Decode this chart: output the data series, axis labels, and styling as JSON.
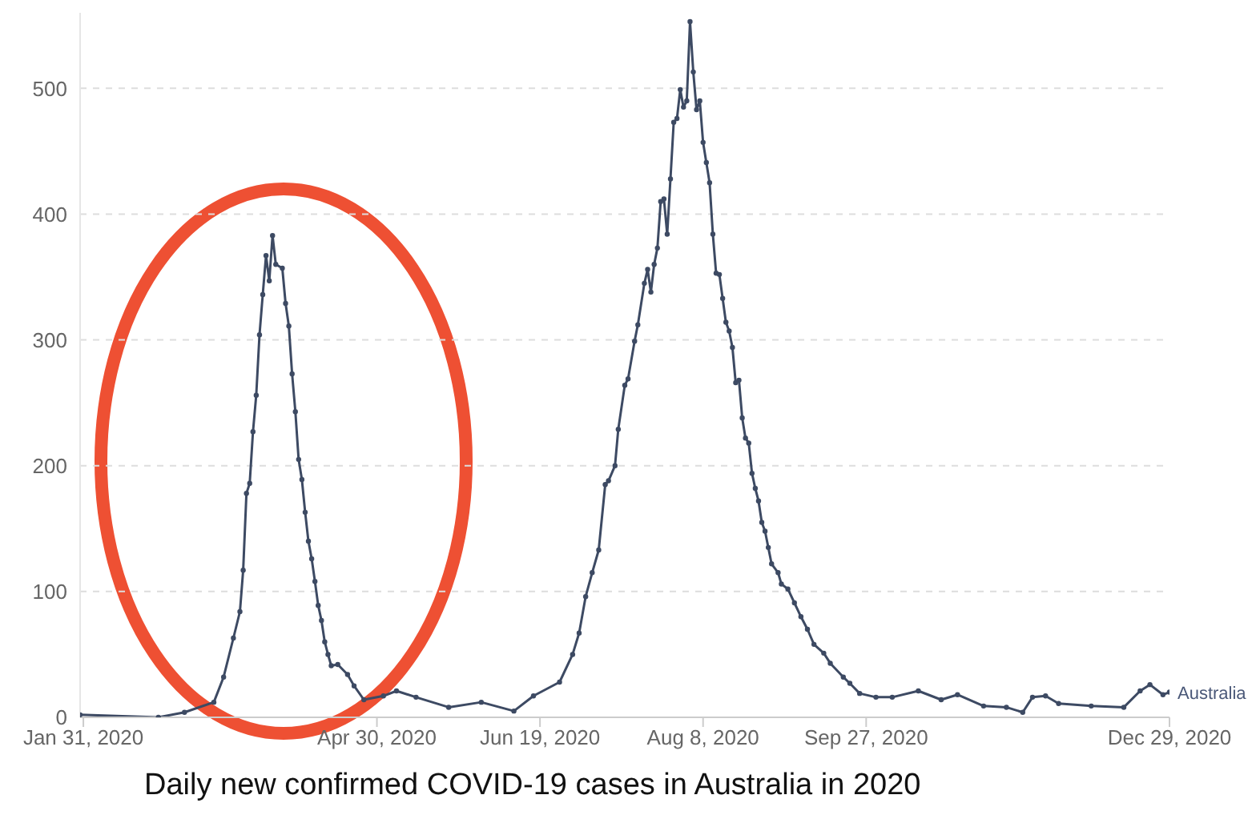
{
  "chart_data": {
    "type": "line",
    "title": "Daily new confirmed COVID-19 cases in Australia in 2020",
    "x": [
      "2020-01-30",
      "2020-02-23",
      "2020-03-02",
      "2020-03-11",
      "2020-03-14",
      "2020-03-17",
      "2020-03-19",
      "2020-03-20",
      "2020-03-21",
      "2020-03-22",
      "2020-03-23",
      "2020-03-24",
      "2020-03-25",
      "2020-03-26",
      "2020-03-27",
      "2020-03-28",
      "2020-03-29",
      "2020-03-30",
      "2020-04-01",
      "2020-04-02",
      "2020-04-03",
      "2020-04-04",
      "2020-04-05",
      "2020-04-06",
      "2020-04-07",
      "2020-04-08",
      "2020-04-09",
      "2020-04-10",
      "2020-04-11",
      "2020-04-12",
      "2020-04-13",
      "2020-04-14",
      "2020-04-15",
      "2020-04-16",
      "2020-04-18",
      "2020-04-21",
      "2020-04-23",
      "2020-04-26",
      "2020-05-02",
      "2020-05-06",
      "2020-05-12",
      "2020-05-22",
      "2020-06-01",
      "2020-06-11",
      "2020-06-17",
      "2020-06-25",
      "2020-06-29",
      "2020-07-01",
      "2020-07-03",
      "2020-07-05",
      "2020-07-07",
      "2020-07-09",
      "2020-07-10",
      "2020-07-12",
      "2020-07-13",
      "2020-07-15",
      "2020-07-16",
      "2020-07-18",
      "2020-07-19",
      "2020-07-21",
      "2020-07-22",
      "2020-07-23",
      "2020-07-24",
      "2020-07-25",
      "2020-07-26",
      "2020-07-27",
      "2020-07-28",
      "2020-07-29",
      "2020-07-30",
      "2020-07-31",
      "2020-08-01",
      "2020-08-02",
      "2020-08-03",
      "2020-08-04",
      "2020-08-05",
      "2020-08-06",
      "2020-08-07",
      "2020-08-08",
      "2020-08-09",
      "2020-08-10",
      "2020-08-11",
      "2020-08-12",
      "2020-08-13",
      "2020-08-14",
      "2020-08-15",
      "2020-08-16",
      "2020-08-17",
      "2020-08-18",
      "2020-08-19",
      "2020-08-20",
      "2020-08-21",
      "2020-08-22",
      "2020-08-23",
      "2020-08-24",
      "2020-08-25",
      "2020-08-26",
      "2020-08-27",
      "2020-08-28",
      "2020-08-29",
      "2020-08-31",
      "2020-09-01",
      "2020-09-03",
      "2020-09-05",
      "2020-09-07",
      "2020-09-09",
      "2020-09-11",
      "2020-09-14",
      "2020-09-16",
      "2020-09-20",
      "2020-09-22",
      "2020-09-25",
      "2020-09-30",
      "2020-10-05",
      "2020-10-13",
      "2020-10-20",
      "2020-10-25",
      "2020-11-02",
      "2020-11-09",
      "2020-11-14",
      "2020-11-17",
      "2020-11-21",
      "2020-11-25",
      "2020-12-05",
      "2020-12-15",
      "2020-12-20",
      "2020-12-23",
      "2020-12-27",
      "2020-12-29"
    ],
    "series": [
      {
        "name": "Australia",
        "color": "#3d4a63",
        "values": [
          2,
          0,
          4,
          12,
          32,
          63,
          84,
          117,
          178,
          186,
          227,
          256,
          304,
          336,
          367,
          347,
          383,
          360,
          357,
          329,
          311,
          273,
          243,
          205,
          189,
          163,
          140,
          126,
          108,
          89,
          77,
          60,
          50,
          41,
          42,
          34,
          25,
          14,
          17,
          21,
          16,
          8,
          12,
          5,
          17,
          28,
          50,
          67,
          96,
          115,
          133,
          185,
          188,
          200,
          229,
          264,
          269,
          299,
          312,
          345,
          356,
          338,
          360,
          373,
          410,
          412,
          384,
          428,
          473,
          476,
          499,
          485,
          490,
          553,
          513,
          483,
          490,
          457,
          441,
          425,
          384,
          353,
          352,
          333,
          314,
          307,
          294,
          266,
          268,
          238,
          222,
          218,
          194,
          182,
          172,
          155,
          148,
          135,
          122,
          115,
          106,
          102,
          91,
          80,
          70,
          58,
          51,
          43,
          32,
          27,
          19,
          16,
          16,
          21,
          14,
          18,
          9,
          8,
          4,
          16,
          17,
          11,
          9,
          8,
          21,
          26,
          18,
          20
        ]
      }
    ],
    "xlim": [
      "2020-01-30",
      "2020-12-29"
    ],
    "xticks": [
      {
        "value": "2020-01-31",
        "label": "Jan 31, 2020"
      },
      {
        "value": "2020-04-30",
        "label": "Apr 30, 2020"
      },
      {
        "value": "2020-06-19",
        "label": "Jun 19, 2020"
      },
      {
        "value": "2020-08-08",
        "label": "Aug 8, 2020"
      },
      {
        "value": "2020-09-27",
        "label": "Sep 27, 2020"
      },
      {
        "value": "2020-12-29",
        "label": "Dec 29, 2020"
      }
    ],
    "ylim": [
      0,
      560
    ],
    "yticks": [
      0,
      100,
      200,
      300,
      400,
      500
    ],
    "grid": "y",
    "legend": false,
    "marker": "circle",
    "line_style": "solid"
  }
}
